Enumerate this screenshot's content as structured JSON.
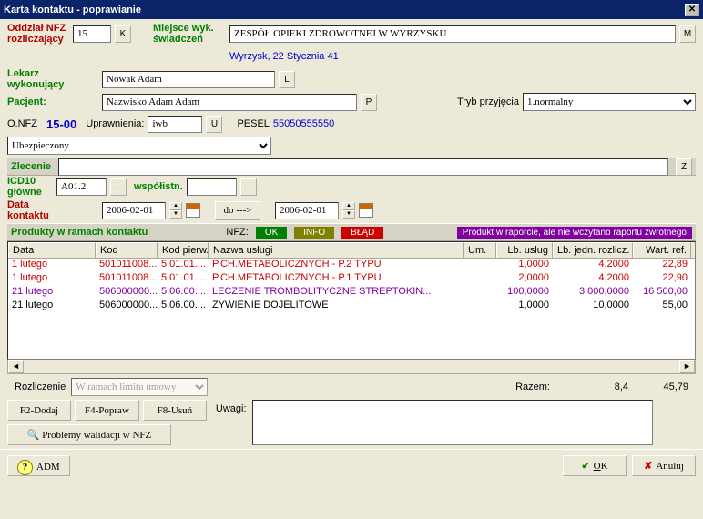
{
  "window": {
    "title": "Karta kontaktu - poprawianie"
  },
  "header": {
    "oddzial_label": "Oddział NFZ rozliczający",
    "oddzial_value": "15",
    "oddzial_btn": "K",
    "miejsce_label": "Miejsce wyk. świadczeń",
    "miejsce_value": "ZESPÓŁ OPIEKI ZDROWOTNEJ W WYRZYSKU",
    "miejsce_btn": "M",
    "miejsce_addr": "Wyrzysk, 22 Stycznia 41"
  },
  "lekarz": {
    "label": "Lekarz wykonujący",
    "value": "Nowak Adam",
    "btn": "L"
  },
  "pacjent": {
    "label": "Pacjent:",
    "value": "Nazwisko Adam Adam",
    "btn": "P",
    "tryb_label": "Tryb przyjęcia",
    "tryb_value": "1.normalny"
  },
  "nfz": {
    "prefix": "O.NFZ",
    "code": "15-00",
    "upr_label": "Uprawnienia:",
    "upr_value": "iwb",
    "upr_btn": "U",
    "pesel_label": "PESEL",
    "pesel_value": "55050555550",
    "status": "Ubezpieczony"
  },
  "zlecenie": {
    "label": "Zlecenie",
    "value": "",
    "btn": "Z"
  },
  "icd": {
    "label": "ICD10 główne",
    "value": "A01.2",
    "wsp_label": "współistn.",
    "wsp_value": ""
  },
  "kontakt": {
    "label": "Data kontaktu",
    "from": "2006-02-01",
    "do_btn": "do --->",
    "to": "2006-02-01"
  },
  "prod_hdr": {
    "title": "Produkty w ramach kontaktu",
    "nfz": "NFZ:",
    "ok": "OK",
    "info": "INFO",
    "blad": "BŁĄD",
    "purple": "Produkt w raporcie, ale nie wczytano raportu zwrotnego"
  },
  "table": {
    "cols": {
      "data": "Data",
      "kod": "Kod",
      "kodp": "Kod pierw.",
      "nazwa": "Nazwa usługi",
      "um": "Um.",
      "lb": "Lb. usług",
      "lbj": "Lb. jedn. rozlicz.",
      "wart": "Wart. ref."
    },
    "rows": [
      {
        "cls": "c-red",
        "data": "1 lutego",
        "kod": "501011008...",
        "kodp": "5.01.01....",
        "nazwa": "P.CH.METABOLICZNYCH - P.2 TYPU",
        "um": "",
        "lb": "1,0000",
        "lbj": "4,2000",
        "wart": "22,89"
      },
      {
        "cls": "c-red",
        "data": "1 lutego",
        "kod": "501011008...",
        "kodp": "5.01.01....",
        "nazwa": "P.CH.METABOLICZNYCH - P.1 TYPU",
        "um": "",
        "lb": "2,0000",
        "lbj": "4,2000",
        "wart": "22,90"
      },
      {
        "cls": "c-purple",
        "data": "21 lutego",
        "kod": "506000000...",
        "kodp": "5.06.00....",
        "nazwa": "LECZENIE TROMBOLITYCZNE STREPTOKIN...",
        "um": "",
        "lb": "100,0000",
        "lbj": "3 000,0000",
        "wart": "16 500,00"
      },
      {
        "cls": "c-black",
        "data": "21 lutego",
        "kod": "506000000...",
        "kodp": "5.06.00....",
        "nazwa": "ŻYWIENIE DOJELITOWE",
        "um": "",
        "lb": "1,0000",
        "lbj": "10,0000",
        "wart": "55,00"
      }
    ]
  },
  "summary": {
    "rozl_label": "Rozliczenie",
    "rozl_value": "W ramach limitu umowy",
    "razem_label": "Razem:",
    "razem_lb": "8,4",
    "razem_wart": "45,79"
  },
  "buttons": {
    "dodaj": "F2-Dodaj",
    "popraw": "F4-Popraw",
    "usun": "F8-Usuń",
    "problemy": "Problemy walidacji w NFZ",
    "uwagi": "Uwagi:"
  },
  "footer": {
    "adm": "ADM",
    "ok": "OK",
    "anuluj": "Anuluj"
  }
}
